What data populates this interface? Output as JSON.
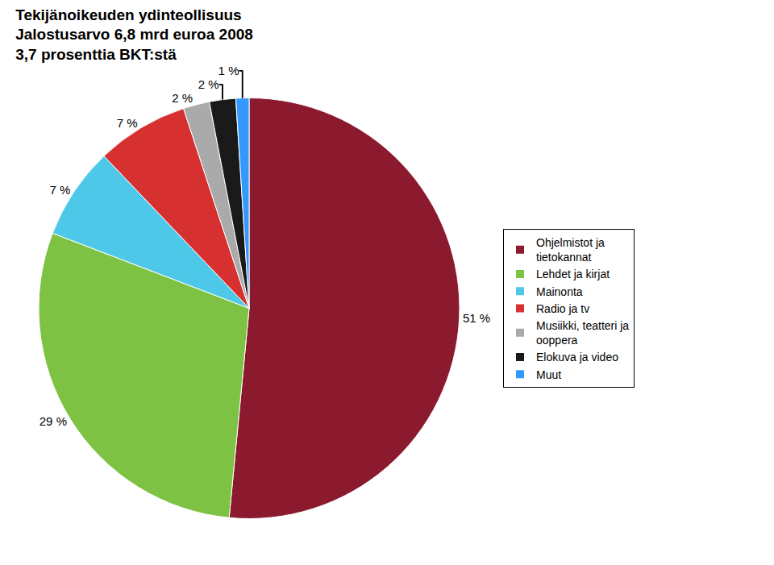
{
  "chart_data": {
    "type": "pie",
    "title": "Tekijänoikeuden ydinteollisuus\nJalostusarvo 6,8 mrd euroa 2008\n3,7 prosenttia BKT:stä",
    "categories": [
      "Ohjelmistot ja\ntietokannat",
      "Lehdet ja kirjat",
      "Mainonta",
      "Radio ja tv",
      "Musiikki, teatteri ja\nooppera",
      "Elokuva ja video",
      "Muut"
    ],
    "values": [
      51,
      29,
      7,
      7,
      2,
      2,
      1
    ],
    "value_labels": [
      "51 %",
      "29 %",
      "7 %",
      "7 %",
      "2 %",
      "2 %",
      "1 %"
    ],
    "data_labels": true,
    "colors": [
      "#8B1A2F",
      "#7DC242",
      "#4DC8E8",
      "#D73030",
      "#AAAAAA",
      "#1A1A1A",
      "#3399FF"
    ],
    "legend": "right"
  }
}
